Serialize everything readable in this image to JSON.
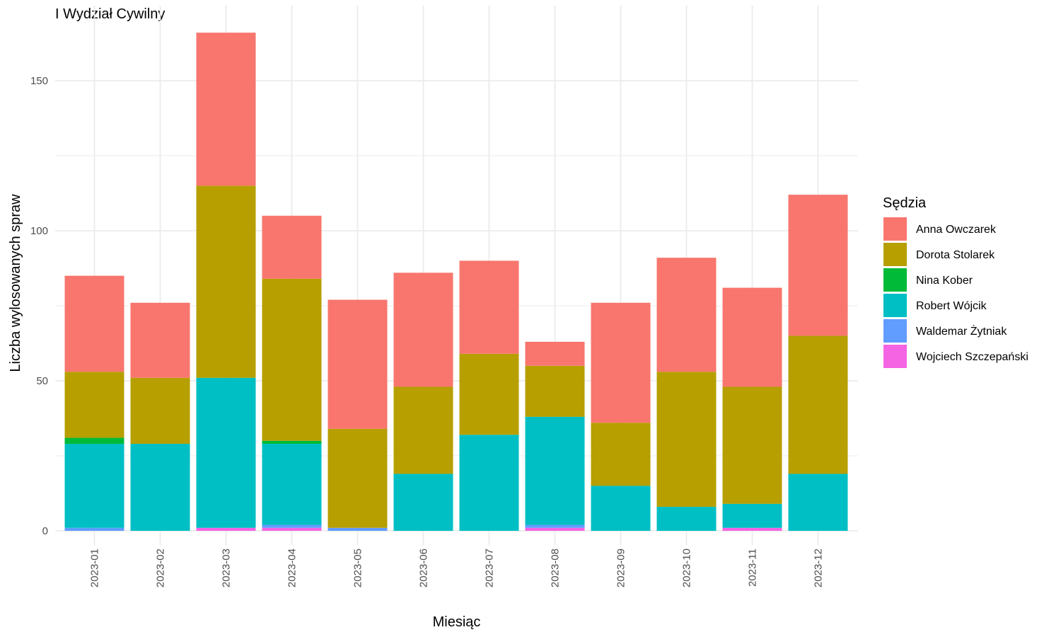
{
  "chart_data": {
    "type": "bar",
    "stacked": true,
    "title": "I Wydział Cywilny",
    "xlabel": "Miesiąc",
    "ylabel": "Liczba wylosowanych spraw",
    "ylim": [
      0,
      170
    ],
    "yticks": [
      0,
      50,
      100,
      150
    ],
    "grid": true,
    "legend_title": "Sędzia",
    "legend_position": "right",
    "categories": [
      "2023-01",
      "2023-02",
      "2023-03",
      "2023-04",
      "2023-05",
      "2023-06",
      "2023-07",
      "2023-08",
      "2023-09",
      "2023-10",
      "2023-11",
      "2023-12"
    ],
    "series": [
      {
        "name": "Anna Owczarek",
        "color": "#F8766D",
        "values": [
          32,
          25,
          51,
          21,
          43,
          38,
          31,
          8,
          40,
          38,
          33,
          47
        ]
      },
      {
        "name": "Dorota Stolarek",
        "color": "#B79F00",
        "values": [
          22,
          22,
          64,
          54,
          33,
          29,
          27,
          17,
          21,
          45,
          39,
          46
        ]
      },
      {
        "name": "Nina Kober",
        "color": "#00BA38",
        "values": [
          2,
          0,
          0,
          1,
          0,
          0,
          0,
          0,
          0,
          0,
          0,
          0
        ]
      },
      {
        "name": "Robert Wójcik",
        "color": "#00BFC4",
        "values": [
          28,
          29,
          50,
          27,
          0,
          19,
          32,
          36,
          15,
          8,
          8,
          19
        ]
      },
      {
        "name": "Waldemar Żytniak",
        "color": "#619CFF",
        "values": [
          1,
          0,
          0,
          1,
          1,
          0,
          0,
          1,
          0,
          0,
          0,
          0
        ]
      },
      {
        "name": "Wojciech Szczepański",
        "color": "#F564E3",
        "values": [
          0,
          0,
          1,
          1,
          0,
          0,
          0,
          1,
          0,
          0,
          1,
          0
        ]
      }
    ]
  }
}
